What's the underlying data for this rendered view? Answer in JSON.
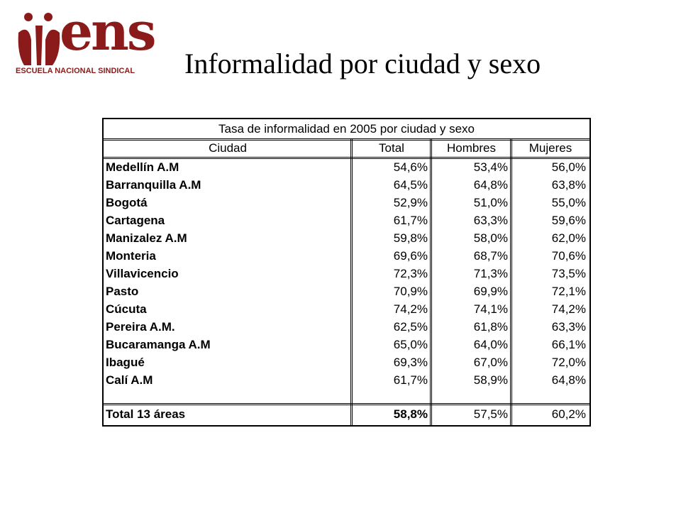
{
  "logo": {
    "text": "ens",
    "subtitle": "ESCUELA NACIONAL SINDICAL"
  },
  "title": "Informalidad por ciudad y sexo",
  "table": {
    "title": "Tasa de informalidad en 2005 por ciudad y sexo",
    "header": [
      "Ciudad",
      "Total",
      "Hombres",
      "Mujeres"
    ],
    "rows": [
      [
        "Medellín A.M",
        "54,6%",
        "53,4%",
        "56,0%"
      ],
      [
        "Barranquilla A.M",
        "64,5%",
        "64,8%",
        "63,8%"
      ],
      [
        "Bogotá",
        "52,9%",
        "51,0%",
        "55,0%"
      ],
      [
        "Cartagena",
        "61,7%",
        "63,3%",
        "59,6%"
      ],
      [
        "Manizalez A.M",
        "59,8%",
        "58,0%",
        "62,0%"
      ],
      [
        "Monteria",
        "69,6%",
        "68,7%",
        "70,6%"
      ],
      [
        "Villavicencio",
        "72,3%",
        "71,3%",
        "73,5%"
      ],
      [
        "Pasto",
        "70,9%",
        "69,9%",
        "72,1%"
      ],
      [
        "Cúcuta",
        "74,2%",
        "74,1%",
        "74,2%"
      ],
      [
        "Pereira A.M.",
        "62,5%",
        "61,8%",
        "63,3%"
      ],
      [
        "Bucaramanga A.M",
        "65,0%",
        "64,0%",
        "66,1%"
      ],
      [
        "Ibagué",
        "69,3%",
        "67,0%",
        "72,0%"
      ],
      [
        "Calí A.M",
        "61,7%",
        "58,9%",
        "64,8%"
      ]
    ],
    "total": [
      "Total 13 áreas",
      "58,8%",
      "57,5%",
      "60,2%"
    ]
  }
}
